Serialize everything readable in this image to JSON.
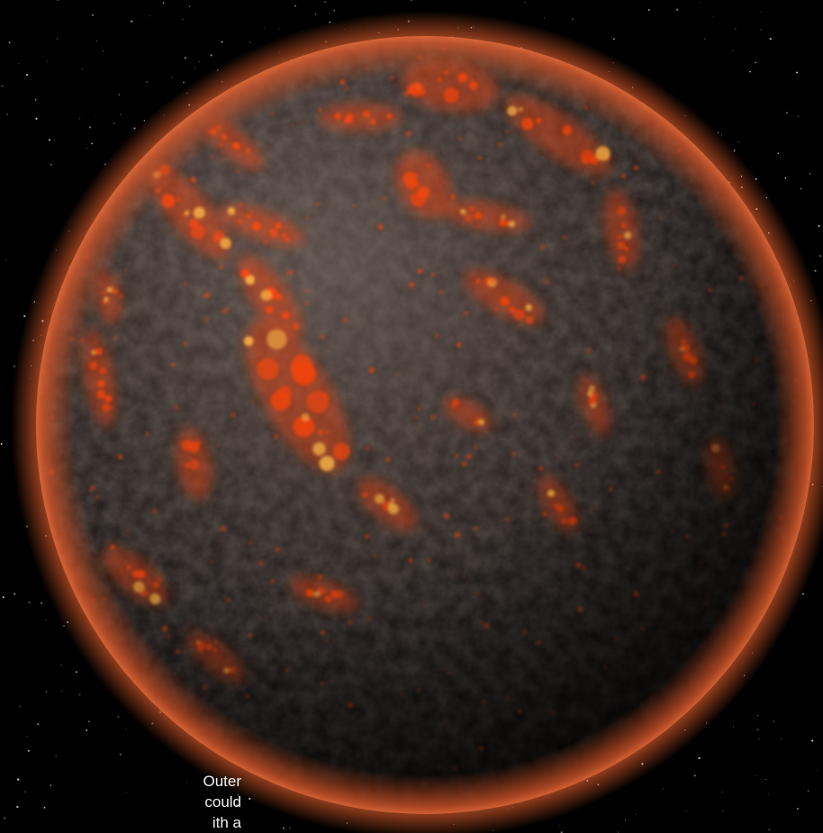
{
  "scene": {
    "subject": "lava-planet",
    "background_color": "#000000",
    "lava_color": "#ff4a12",
    "lava_highlight": "#ffb347",
    "rim_glow_color": "#ff6a30",
    "rock_color": "#2a2422"
  },
  "caption": {
    "lines": [
      "Outer",
      "could",
      "ith  a"
    ]
  }
}
